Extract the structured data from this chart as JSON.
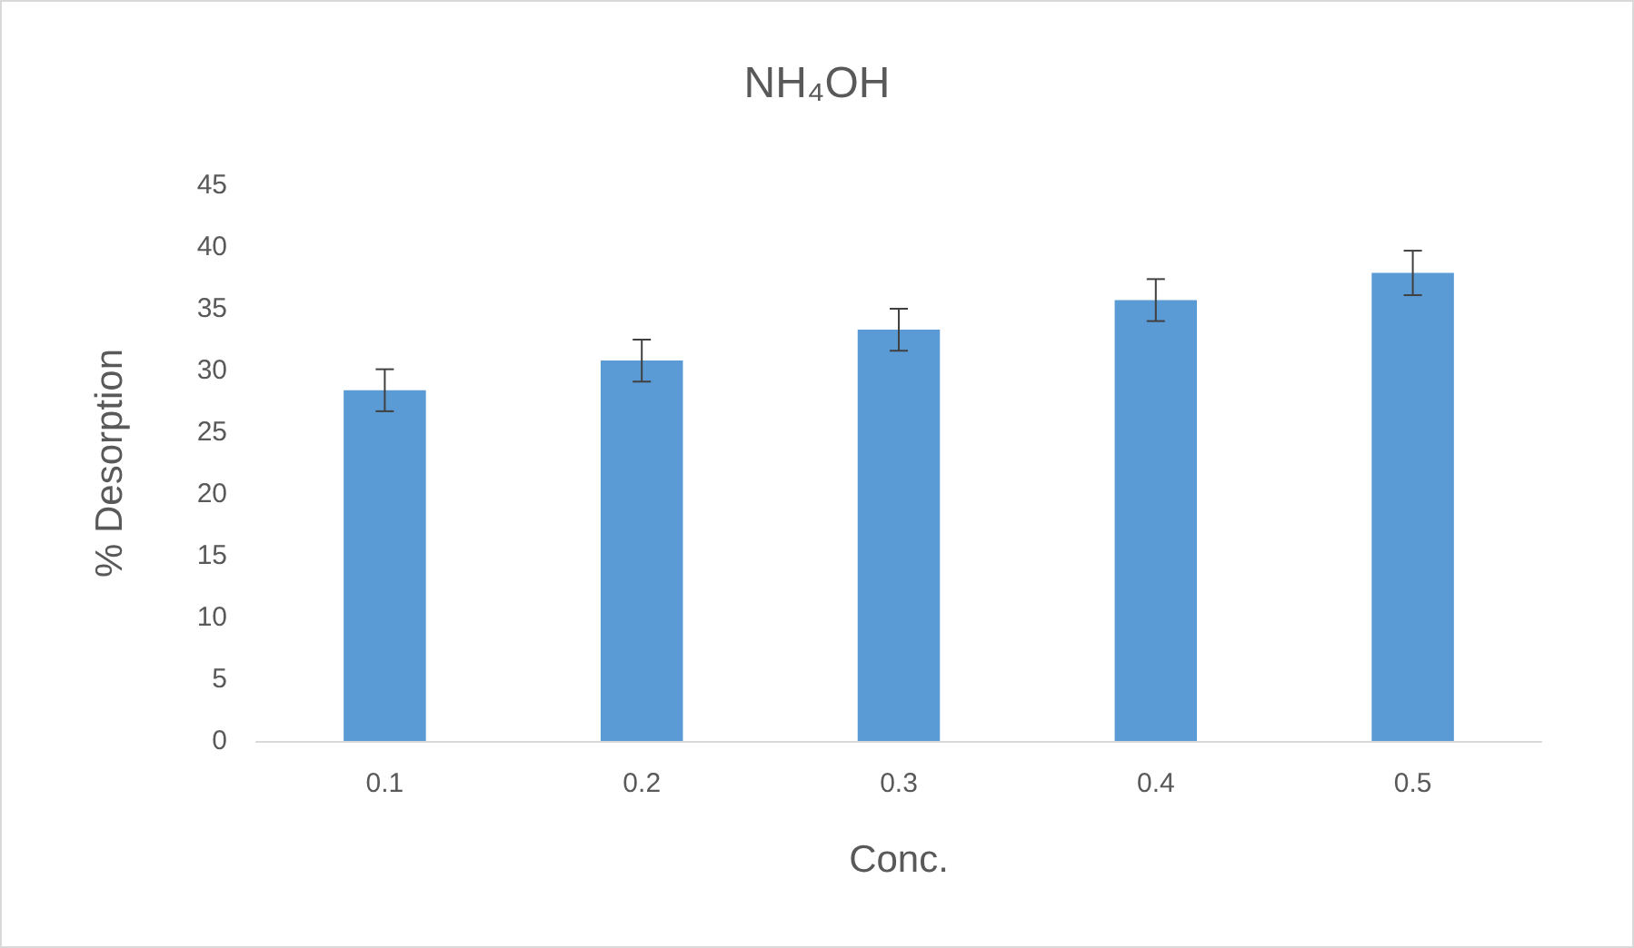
{
  "chart_data": {
    "type": "bar",
    "title": "NH₄OH",
    "xlabel": "Conc.",
    "ylabel": "% Desorption",
    "categories": [
      "0.1",
      "0.2",
      "0.3",
      "0.4",
      "0.5"
    ],
    "values": [
      28.4,
      30.8,
      33.3,
      35.7,
      37.9
    ],
    "errors": [
      1.7,
      1.7,
      1.7,
      1.7,
      1.8
    ],
    "color": "#5b9bd5",
    "ylim": [
      0,
      45
    ],
    "yticks": [
      0,
      5,
      10,
      15,
      20,
      25,
      30,
      35,
      40,
      45
    ],
    "grid": false
  }
}
